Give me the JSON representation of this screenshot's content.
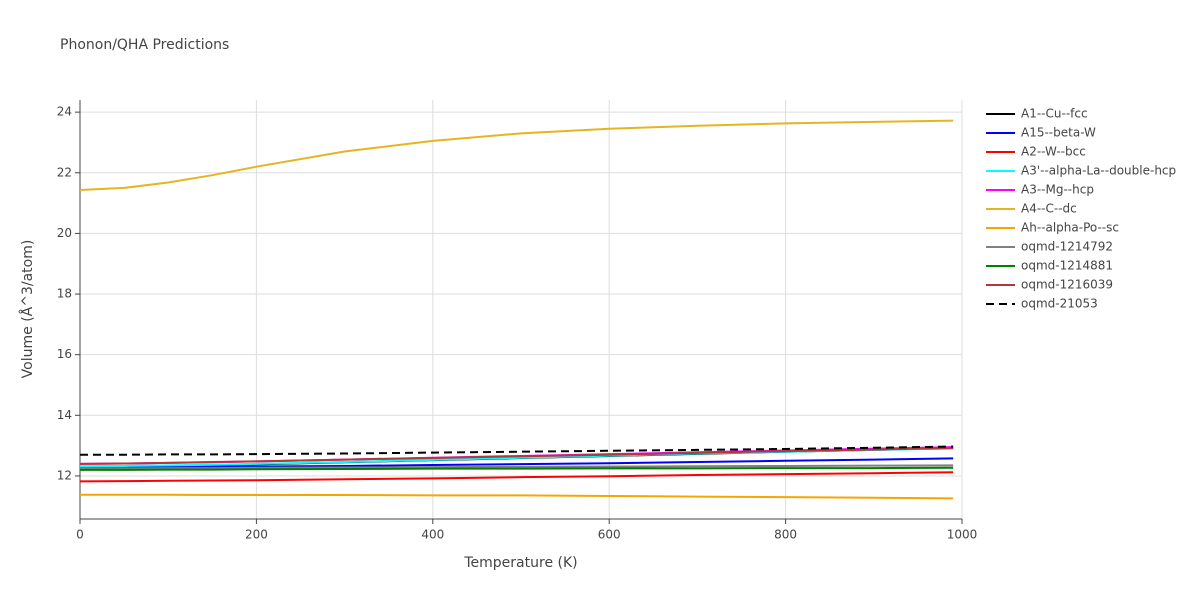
{
  "chart_data": {
    "type": "line",
    "title": "Phonon/QHA Predictions",
    "x_label": "Temperature (K)",
    "y_label": "Volume (Å^3/atom)",
    "x": [
      0,
      50,
      100,
      150,
      200,
      300,
      400,
      500,
      600,
      700,
      800,
      900,
      990
    ],
    "xlim": [
      0,
      1000
    ],
    "xticks": [
      0,
      200,
      400,
      600,
      800,
      1000
    ],
    "ylim": [
      10.58,
      24.4
    ],
    "yticks": [
      12,
      14,
      16,
      18,
      20,
      22,
      24
    ],
    "grid": true,
    "legend": "right",
    "series": [
      {
        "name": "A1--Cu--fcc",
        "color": "#000000",
        "values": [
          12.3,
          12.31,
          12.33,
          12.35,
          12.38,
          12.45,
          12.52,
          12.59,
          12.66,
          12.73,
          12.8,
          12.86,
          12.92
        ]
      },
      {
        "name": "A15--beta-W",
        "color": "#0000ff",
        "values": [
          12.28,
          12.28,
          12.29,
          12.3,
          12.31,
          12.33,
          12.36,
          12.39,
          12.42,
          12.46,
          12.5,
          12.54,
          12.58
        ]
      },
      {
        "name": "A2--W--bcc",
        "color": "#ff0000",
        "values": [
          11.82,
          11.83,
          11.84,
          11.85,
          11.86,
          11.89,
          11.92,
          11.96,
          11.99,
          12.03,
          12.06,
          12.09,
          12.12
        ]
      },
      {
        "name": "A3'--alpha-La--double-hcp",
        "color": "#00ffff",
        "values": [
          12.32,
          12.33,
          12.35,
          12.37,
          12.4,
          12.46,
          12.53,
          12.6,
          12.67,
          12.74,
          12.8,
          12.86,
          12.9
        ]
      },
      {
        "name": "A3--Mg--hcp",
        "color": "#ff00ff",
        "values": [
          12.4,
          12.41,
          12.43,
          12.45,
          12.48,
          12.54,
          12.6,
          12.66,
          12.72,
          12.78,
          12.84,
          12.9,
          12.95
        ]
      },
      {
        "name": "A4--C--dc",
        "color": "#e6b422",
        "values": [
          21.43,
          21.5,
          21.68,
          21.92,
          22.2,
          22.7,
          23.05,
          23.3,
          23.45,
          23.55,
          23.63,
          23.68,
          23.72
        ]
      },
      {
        "name": "Ah--alpha-Po--sc",
        "color": "#f5a700",
        "values": [
          11.38,
          11.38,
          11.38,
          11.37,
          11.37,
          11.37,
          11.36,
          11.36,
          11.34,
          11.32,
          11.3,
          11.28,
          11.26
        ]
      },
      {
        "name": "oqmd-1214792",
        "color": "#808080",
        "values": [
          12.25,
          12.25,
          12.26,
          12.26,
          12.27,
          12.28,
          12.29,
          12.3,
          12.31,
          12.32,
          12.33,
          12.34,
          12.35
        ]
      },
      {
        "name": "oqmd-1214881",
        "color": "#008000",
        "values": [
          12.2,
          12.2,
          12.21,
          12.21,
          12.22,
          12.23,
          12.24,
          12.24,
          12.25,
          12.25,
          12.26,
          12.26,
          12.27
        ]
      },
      {
        "name": "oqmd-1216039",
        "color": "#b03a3a",
        "values": [
          12.4,
          12.41,
          12.43,
          12.46,
          12.48,
          12.54,
          12.59,
          12.65,
          12.7,
          12.76,
          12.82,
          12.87,
          12.92
        ]
      },
      {
        "name": "oqmd-21053",
        "color": "#000000",
        "dash": "dash",
        "values": [
          12.7,
          12.7,
          12.71,
          12.71,
          12.72,
          12.74,
          12.77,
          12.8,
          12.83,
          12.86,
          12.89,
          12.93,
          12.97
        ]
      }
    ]
  }
}
